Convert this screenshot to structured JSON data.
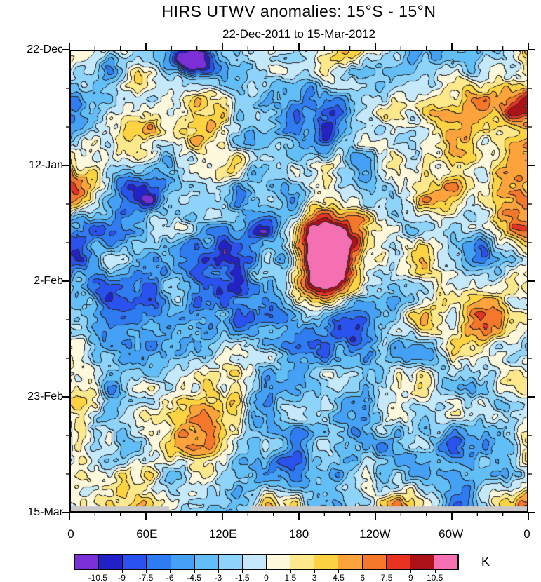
{
  "chart_data": {
    "type": "heatmap",
    "title": "HIRS UTWV anomalies: 15°S - 15°N",
    "subtitle": "22-Dec-2011 to 15-Mar-2012",
    "x_axis": {
      "ticks": [
        "0",
        "60E",
        "120E",
        "180",
        "120W",
        "60W",
        "0"
      ],
      "positions": [
        0,
        0.1667,
        0.3333,
        0.5,
        0.6667,
        0.8333,
        1
      ]
    },
    "y_axis": {
      "ticks": [
        "22-Dec",
        "12-Jan",
        "2-Feb",
        "23-Feb",
        "15-Mar"
      ],
      "positions": [
        0,
        0.25,
        0.5,
        0.75,
        1
      ]
    },
    "colorbar": {
      "unit": "K",
      "levels": [
        "-10.5",
        "-9",
        "-7.5",
        "-6",
        "-4.5",
        "-3",
        "-1.5",
        "0",
        "1.5",
        "3",
        "4.5",
        "6",
        "7.5",
        "9",
        "10.5"
      ],
      "colors": [
        "#7B2FD6",
        "#2222C8",
        "#2A52EE",
        "#2E7BF2",
        "#45A1F5",
        "#62BEF7",
        "#8ED3FA",
        "#C6E8FB",
        "#FEF8DC",
        "#FEE88C",
        "#FDD341",
        "#FCA33C",
        "#F4772A",
        "#E83323",
        "#AD1218",
        "#F470B2"
      ],
      "missing_color": "#C9C9C9",
      "contour_color": "#2A2A2A"
    },
    "field_description": "Filled contour anomaly field (time vs longitude), values in K quantized at 1.5 K intervals from -10.5 to 10.5; strong positive (pink, >10.5 K) feature near 180-160W around 2-Feb; gray strips at final time step denote missing data."
  }
}
